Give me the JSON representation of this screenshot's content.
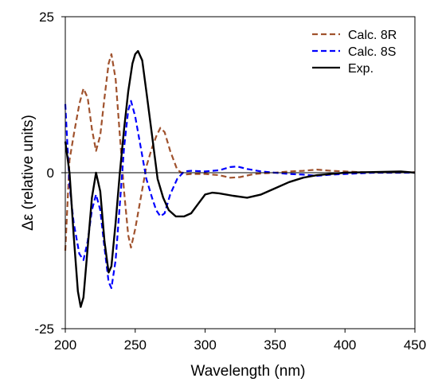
{
  "chart_data": {
    "type": "line",
    "xlabel": "Wavelength (nm)",
    "ylabel": "Δε (relative units)",
    "xlim": [
      200,
      450
    ],
    "ylim": [
      -25,
      25
    ],
    "x_ticks": [
      200,
      250,
      300,
      350,
      400,
      450
    ],
    "y_ticks": [
      25,
      0,
      -25
    ],
    "y_tick_labels": [
      "25",
      "0",
      "-25"
    ],
    "zero_line": true,
    "grid": false,
    "legend_position": "top-right",
    "series": [
      {
        "name": "Calc. 8R",
        "color": "#a0522d",
        "style": "dashed",
        "points": [
          [
            200,
            -12.5
          ],
          [
            203,
            2
          ],
          [
            206,
            6
          ],
          [
            210,
            11
          ],
          [
            213,
            13.5
          ],
          [
            216,
            12
          ],
          [
            219,
            7
          ],
          [
            222,
            3.5
          ],
          [
            225,
            6
          ],
          [
            228,
            12
          ],
          [
            231,
            17.5
          ],
          [
            233,
            19
          ],
          [
            236,
            15
          ],
          [
            239,
            6
          ],
          [
            242,
            -3
          ],
          [
            245,
            -10
          ],
          [
            247,
            -12
          ],
          [
            250,
            -9
          ],
          [
            254,
            -4
          ],
          [
            258,
            1
          ],
          [
            262,
            4
          ],
          [
            265,
            5.8
          ],
          [
            268,
            7.2
          ],
          [
            271,
            6.5
          ],
          [
            275,
            3.5
          ],
          [
            280,
            0.5
          ],
          [
            285,
            -0.3
          ],
          [
            290,
            -0.2
          ],
          [
            300,
            -0.2
          ],
          [
            310,
            -0.4
          ],
          [
            318,
            -0.8
          ],
          [
            325,
            -0.7
          ],
          [
            335,
            -0.2
          ],
          [
            350,
            0
          ],
          [
            360,
            0.2
          ],
          [
            370,
            0.3
          ],
          [
            380,
            0.5
          ],
          [
            390,
            0.3
          ],
          [
            400,
            0.2
          ],
          [
            420,
            0
          ],
          [
            440,
            0
          ],
          [
            450,
            0.1
          ]
        ]
      },
      {
        "name": "Calc. 8S",
        "color": "#0000ff",
        "style": "dashed",
        "points": [
          [
            200,
            11
          ],
          [
            203,
            -2
          ],
          [
            206,
            -8
          ],
          [
            210,
            -13
          ],
          [
            213,
            -14
          ],
          [
            216,
            -11
          ],
          [
            219,
            -6
          ],
          [
            222,
            -3.5
          ],
          [
            225,
            -6
          ],
          [
            228,
            -12
          ],
          [
            231,
            -17.5
          ],
          [
            233,
            -18.5
          ],
          [
            236,
            -14
          ],
          [
            239,
            -5
          ],
          [
            242,
            4
          ],
          [
            245,
            10
          ],
          [
            247,
            11.5
          ],
          [
            250,
            9
          ],
          [
            254,
            4
          ],
          [
            258,
            -1
          ],
          [
            262,
            -4
          ],
          [
            265,
            -6
          ],
          [
            268,
            -7
          ],
          [
            271,
            -6.5
          ],
          [
            275,
            -3.5
          ],
          [
            280,
            -1
          ],
          [
            285,
            0.2
          ],
          [
            290,
            0.3
          ],
          [
            300,
            0.2
          ],
          [
            310,
            0.4
          ],
          [
            318,
            0.9
          ],
          [
            323,
            1
          ],
          [
            330,
            0.6
          ],
          [
            340,
            0.2
          ],
          [
            350,
            0
          ],
          [
            360,
            -0.2
          ],
          [
            370,
            -0.3
          ],
          [
            380,
            -0.5
          ],
          [
            390,
            -0.3
          ],
          [
            400,
            -0.2
          ],
          [
            420,
            0
          ],
          [
            440,
            0
          ],
          [
            450,
            0
          ]
        ]
      },
      {
        "name": "Exp.",
        "color": "#000000",
        "style": "solid",
        "points": [
          [
            200,
            5
          ],
          [
            203,
            0
          ],
          [
            206,
            -10
          ],
          [
            209,
            -19
          ],
          [
            211,
            -21.5
          ],
          [
            213,
            -20
          ],
          [
            216,
            -12
          ],
          [
            219,
            -4
          ],
          [
            222,
            0
          ],
          [
            225,
            -3
          ],
          [
            228,
            -11
          ],
          [
            231,
            -16
          ],
          [
            233,
            -15
          ],
          [
            236,
            -8
          ],
          [
            239,
            0
          ],
          [
            242,
            7
          ],
          [
            245,
            13
          ],
          [
            248,
            17.5
          ],
          [
            250,
            19
          ],
          [
            252,
            19.5
          ],
          [
            255,
            18
          ],
          [
            258,
            13
          ],
          [
            262,
            6
          ],
          [
            266,
            -1
          ],
          [
            270,
            -4
          ],
          [
            274,
            -6
          ],
          [
            279,
            -7
          ],
          [
            285,
            -7
          ],
          [
            290,
            -6.5
          ],
          [
            295,
            -5
          ],
          [
            300,
            -3.5
          ],
          [
            305,
            -3.2
          ],
          [
            310,
            -3.3
          ],
          [
            320,
            -3.7
          ],
          [
            330,
            -4
          ],
          [
            340,
            -3.5
          ],
          [
            350,
            -2.5
          ],
          [
            360,
            -1.5
          ],
          [
            370,
            -0.8
          ],
          [
            380,
            -0.4
          ],
          [
            390,
            -0.2
          ],
          [
            400,
            0
          ],
          [
            420,
            0.1
          ],
          [
            440,
            0.2
          ],
          [
            450,
            0
          ]
        ]
      }
    ]
  }
}
